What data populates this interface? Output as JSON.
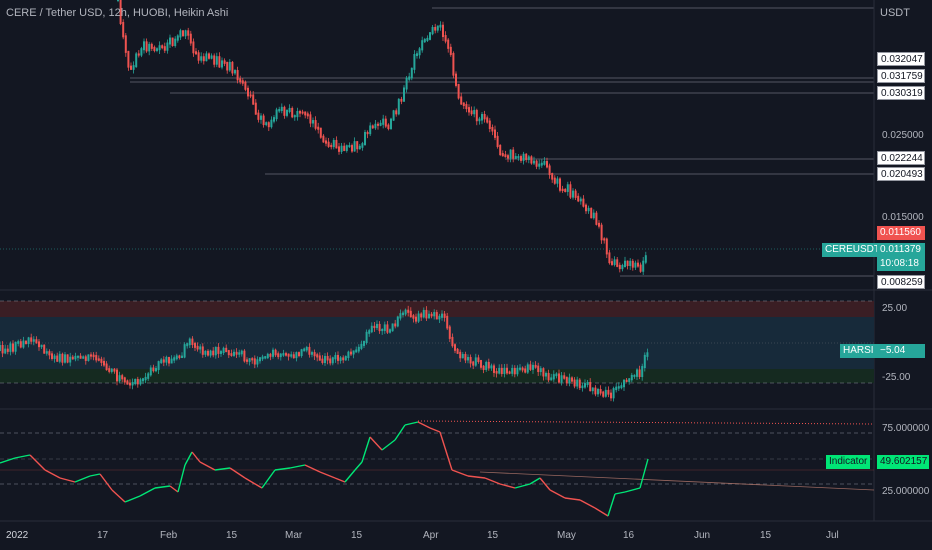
{
  "header": {
    "symbol_title": "CERE / Tether USD, 12h, HUOBI, Heikin Ashi",
    "currency": "USDT"
  },
  "price_axis": {
    "labels": [
      "0.032047",
      "0.031759",
      "0.030319",
      "0.025000",
      "0.022244",
      "0.020493",
      "0.015000",
      "0.008259"
    ],
    "plain_labels": [
      "0.025000",
      "0.015000"
    ],
    "boxed_labels": [
      "0.032047",
      "0.031759",
      "0.030319",
      "0.022244",
      "0.020493",
      "0.008259"
    ],
    "last_price": {
      "label": "0.011560",
      "color": "#f05350"
    },
    "symbol_tag": {
      "symbol": "CEREUSDT",
      "price": "0.011379",
      "countdown": "10:08:18",
      "color": "#26a69a"
    }
  },
  "harsi_pane": {
    "levels": [
      "25.00",
      "-25.00"
    ],
    "tag": {
      "name": "HARSI",
      "value": "−5.04",
      "color": "#26a69a"
    }
  },
  "indicator_pane": {
    "levels": [
      "75.000000",
      "25.000000"
    ],
    "tag": {
      "name": "Indicator",
      "value": "49.602157",
      "color": "#00e676"
    }
  },
  "time_axis": {
    "labels": [
      "2022",
      "17",
      "Feb",
      "15",
      "Mar",
      "15",
      "Apr",
      "15",
      "May",
      "16",
      "Jun",
      "15",
      "Jul"
    ]
  },
  "colors": {
    "background": "#131722",
    "bull": "#26a69a",
    "bear": "#ef5350",
    "indicator_line": "#00e676"
  }
}
